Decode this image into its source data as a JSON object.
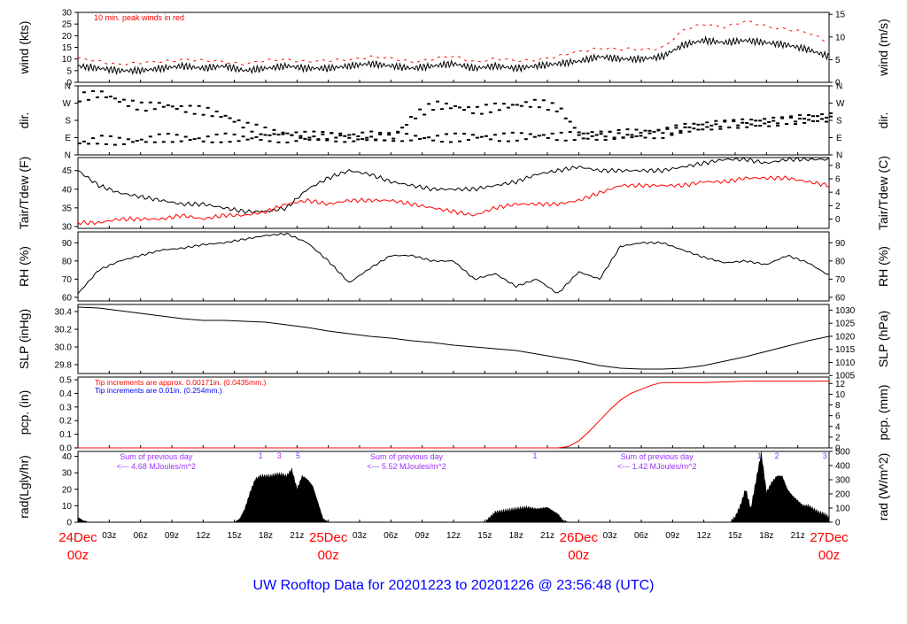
{
  "footer_title": "UW Rooftop Data for 20201223  to  20201226 @ 23:56:48  (UTC)",
  "colors": {
    "red": "#ff0000",
    "blue": "#0000ff",
    "purple": "#9b30ff",
    "black": "#000000"
  },
  "time_axis": {
    "hours_start": 0,
    "hours_end": 72,
    "day_labels": [
      {
        "hour": 0,
        "date": "24Dec",
        "time": "00z"
      },
      {
        "hour": 24,
        "date": "25Dec",
        "time": "00z"
      },
      {
        "hour": 48,
        "date": "26Dec",
        "time": "00z"
      },
      {
        "hour": 72,
        "date": "27Dec",
        "time": "00z"
      }
    ],
    "tick_labels": [
      {
        "hour": 3,
        "label": "03z"
      },
      {
        "hour": 6,
        "label": "06z"
      },
      {
        "hour": 9,
        "label": "09z"
      },
      {
        "hour": 12,
        "label": "12z"
      },
      {
        "hour": 15,
        "label": "15z"
      },
      {
        "hour": 18,
        "label": "18z"
      },
      {
        "hour": 21,
        "label": "21z"
      },
      {
        "hour": 27,
        "label": "03z"
      },
      {
        "hour": 30,
        "label": "06z"
      },
      {
        "hour": 33,
        "label": "09z"
      },
      {
        "hour": 36,
        "label": "12z"
      },
      {
        "hour": 39,
        "label": "15z"
      },
      {
        "hour": 42,
        "label": "18z"
      },
      {
        "hour": 45,
        "label": "21z"
      },
      {
        "hour": 51,
        "label": "03z"
      },
      {
        "hour": 54,
        "label": "06z"
      },
      {
        "hour": 57,
        "label": "09z"
      },
      {
        "hour": 60,
        "label": "12z"
      },
      {
        "hour": 63,
        "label": "15z"
      },
      {
        "hour": 66,
        "label": "18z"
      },
      {
        "hour": 69,
        "label": "21z"
      }
    ]
  },
  "chart_data": [
    {
      "id": "wind",
      "type": "line",
      "ylabel_left": "wind (kts)",
      "ylabel_right": "wind (m/s)",
      "ylim": [
        0,
        30
      ],
      "left_ticks": [
        0,
        5,
        10,
        15,
        20,
        25,
        30
      ],
      "right_ticks": [
        0,
        5,
        10,
        15
      ],
      "right_factor": 1.9438,
      "annotations": [
        {
          "text": "10 min. peak winds in red",
          "color": "#ff0000"
        }
      ],
      "x": [
        0,
        2,
        4,
        6,
        8,
        10,
        12,
        14,
        16,
        18,
        20,
        22,
        24,
        26,
        28,
        30,
        32,
        34,
        36,
        38,
        40,
        42,
        44,
        46,
        48,
        50,
        52,
        54,
        56,
        58,
        60,
        62,
        64,
        66,
        68,
        70,
        72
      ],
      "series": [
        {
          "color": "#000000",
          "values": [
            7,
            6,
            5,
            5,
            6,
            7,
            6,
            7,
            5,
            6,
            7,
            6,
            6,
            7,
            8,
            7,
            6,
            7,
            8,
            6,
            7,
            6,
            7,
            8,
            9,
            11,
            10,
            10,
            11,
            16,
            18,
            17,
            18,
            17,
            16,
            14,
            11
          ]
        },
        {
          "color": "#ff0000",
          "values": [
            10,
            9,
            8,
            8,
            9,
            10,
            9,
            9,
            8,
            9,
            10,
            9,
            9,
            10,
            11,
            10,
            9,
            10,
            11,
            9,
            10,
            9,
            10,
            11,
            13,
            15,
            14,
            14,
            15,
            22,
            25,
            24,
            26,
            24,
            23,
            21,
            17
          ]
        }
      ]
    },
    {
      "id": "dir",
      "type": "scatter",
      "ylabel_left": "dir.",
      "ylabel_right": "dir.",
      "ylim": [
        0,
        360
      ],
      "tick_labels": [
        "N",
        "E",
        "S",
        "W",
        "N"
      ],
      "tick_values": [
        0,
        90,
        180,
        270,
        360
      ],
      "x": [
        0,
        2,
        4,
        6,
        8,
        10,
        12,
        14,
        16,
        18,
        20,
        22,
        24,
        26,
        28,
        30,
        32,
        34,
        36,
        38,
        40,
        42,
        44,
        46,
        48,
        50,
        52,
        54,
        56,
        58,
        60,
        62,
        64,
        66,
        68,
        70,
        72
      ],
      "series": [
        {
          "color": "#000000",
          "values": [
            60,
            80,
            70,
            75,
            90,
            85,
            80,
            90,
            85,
            90,
            85,
            90,
            95,
            85,
            90,
            95,
            90,
            85,
            90,
            95,
            90,
            95,
            100,
            95,
            100,
            105,
            110,
            115,
            125,
            140,
            150,
            160,
            165,
            170,
            180,
            190,
            195
          ]
        },
        {
          "color": "#000000",
          "values": [
            300,
            320,
            280,
            250,
            260,
            240,
            230,
            200,
            150,
            120,
            110,
            100,
            100,
            95,
            100,
            90,
            200,
            260,
            250,
            230,
            250,
            260,
            270,
            240,
            100,
            100,
            100,
            105,
            110,
            140,
            150,
            160,
            165,
            170,
            180,
            190,
            195
          ]
        }
      ]
    },
    {
      "id": "temp",
      "type": "line",
      "ylabel_left": "Tair/Tdew (F)",
      "ylabel_right": "Tair/Tdew (C)",
      "ylim": [
        29.5,
        48.5
      ],
      "left_ticks": [
        30,
        35,
        40,
        45
      ],
      "right_ticks": [
        0,
        2,
        4,
        6,
        8
      ],
      "x": [
        0,
        2,
        4,
        6,
        8,
        10,
        12,
        14,
        16,
        18,
        20,
        22,
        24,
        26,
        28,
        30,
        32,
        34,
        36,
        38,
        40,
        42,
        44,
        46,
        48,
        50,
        52,
        54,
        56,
        58,
        60,
        62,
        64,
        66,
        68,
        70,
        72
      ],
      "series": [
        {
          "name": "Tair",
          "color": "#000000",
          "values": [
            45,
            41,
            39,
            38,
            37,
            36,
            36,
            35,
            34,
            34,
            35,
            40,
            43,
            45,
            44,
            42,
            41,
            40,
            40,
            40,
            41,
            42,
            44,
            45,
            46,
            45,
            45,
            45,
            45,
            46,
            47,
            48,
            48,
            47,
            48,
            48,
            48
          ]
        },
        {
          "name": "Tdew",
          "color": "#ff0000",
          "values": [
            31,
            31,
            32,
            32,
            32,
            33,
            32,
            33,
            33,
            34,
            36,
            37,
            36,
            37,
            37,
            37,
            36,
            35,
            34,
            33,
            35,
            36,
            36,
            36,
            37,
            39,
            41,
            41,
            41,
            41,
            42,
            42,
            43,
            43,
            43,
            42,
            41
          ]
        }
      ]
    },
    {
      "id": "rh",
      "type": "line",
      "ylabel_left": "RH (%)",
      "ylabel_right": "RH (%)",
      "ylim": [
        58,
        96
      ],
      "left_ticks": [
        60,
        70,
        80,
        90
      ],
      "right_ticks": [
        60,
        70,
        80,
        90
      ],
      "x": [
        0,
        2,
        4,
        6,
        8,
        10,
        12,
        14,
        16,
        18,
        20,
        22,
        24,
        26,
        28,
        30,
        32,
        34,
        36,
        38,
        40,
        42,
        44,
        46,
        48,
        50,
        52,
        54,
        56,
        58,
        60,
        62,
        64,
        66,
        68,
        70,
        72
      ],
      "series": [
        {
          "color": "#000000",
          "values": [
            62,
            75,
            80,
            83,
            86,
            87,
            89,
            90,
            92,
            94,
            95,
            90,
            80,
            68,
            76,
            83,
            83,
            80,
            80,
            70,
            73,
            66,
            70,
            62,
            74,
            70,
            88,
            90,
            90,
            86,
            82,
            79,
            80,
            78,
            83,
            79,
            72
          ]
        }
      ]
    },
    {
      "id": "slp",
      "type": "line",
      "ylabel_left": "SLP (inHg)",
      "ylabel_right": "SLP (hPa)",
      "ylim": [
        29.7,
        30.48
      ],
      "left_ticks": [
        29.8,
        30.0,
        30.2,
        30.4
      ],
      "right_ticks": [
        1005,
        1010,
        1015,
        1020,
        1025,
        1030
      ],
      "x": [
        0,
        2,
        4,
        6,
        8,
        10,
        12,
        14,
        16,
        18,
        20,
        22,
        24,
        26,
        28,
        30,
        32,
        34,
        36,
        38,
        40,
        42,
        44,
        46,
        48,
        50,
        52,
        54,
        56,
        58,
        60,
        62,
        64,
        66,
        68,
        70,
        72
      ],
      "series": [
        {
          "color": "#000000",
          "values": [
            30.45,
            30.44,
            30.41,
            30.38,
            30.35,
            30.32,
            30.3,
            30.3,
            30.29,
            30.28,
            30.25,
            30.22,
            30.18,
            30.15,
            30.12,
            30.1,
            30.07,
            30.05,
            30.02,
            30.0,
            29.98,
            29.96,
            29.92,
            29.88,
            29.84,
            29.79,
            29.76,
            29.75,
            29.75,
            29.76,
            29.79,
            29.84,
            29.89,
            29.95,
            30.01,
            30.07,
            30.12
          ]
        }
      ]
    },
    {
      "id": "pcp",
      "type": "line",
      "ylabel_left": "pcp. (in)",
      "ylabel_right": "pcp. (mm)",
      "ylim": [
        0,
        0.52
      ],
      "left_ticks": [
        0.0,
        0.1,
        0.2,
        0.3,
        0.4,
        0.5
      ],
      "right_ticks": [
        0,
        2,
        4,
        6,
        8,
        10,
        12
      ],
      "annotations": [
        {
          "text": "Tip increments are approx. 0.00171in. (0.0435mm.)",
          "color": "#ff0000"
        },
        {
          "text": "Tip increments are 0.01in. (0.254mm.)",
          "color": "#0000ff"
        }
      ],
      "x": [
        0,
        12,
        24,
        36,
        46,
        47,
        48,
        49,
        50,
        51,
        52,
        53,
        54,
        55,
        56,
        58,
        60,
        64,
        68,
        72
      ],
      "series": [
        {
          "color": "#ff0000",
          "values": [
            0,
            0,
            0,
            0,
            0,
            0.01,
            0.05,
            0.12,
            0.2,
            0.28,
            0.35,
            0.4,
            0.43,
            0.46,
            0.48,
            0.48,
            0.48,
            0.49,
            0.49,
            0.49
          ]
        }
      ]
    },
    {
      "id": "rad",
      "type": "area",
      "ylabel_left": "rad(Lgly/hr)",
      "ylabel_right": "rad (W/m^2)",
      "ylim": [
        0,
        43
      ],
      "left_ticks": [
        0,
        10,
        20,
        30,
        40
      ],
      "right_ticks": [
        0,
        100,
        200,
        300,
        400,
        500
      ],
      "day_sums": [
        {
          "text": "Sum of previous day",
          "value": "<--- 4.68 MJoules/m^2"
        },
        {
          "text": "Sum of previous day",
          "value": "<--- 5.52 MJoules/m^2"
        },
        {
          "text": "Sum of previous day",
          "value": "<--- 1.42 MJoules/m^2"
        }
      ],
      "markers": [
        {
          "hour": 17.5,
          "label": "1"
        },
        {
          "hour": 19.3,
          "label": "3"
        },
        {
          "hour": 21.1,
          "label": "5"
        },
        {
          "hour": 43.8,
          "label": "1"
        },
        {
          "hour": 65.3,
          "label": "1"
        },
        {
          "hour": 67.0,
          "label": "2"
        },
        {
          "hour": 71.6,
          "label": "3"
        }
      ],
      "x": [
        0,
        0.5,
        1,
        15,
        15.5,
        16,
        16.5,
        17,
        17.5,
        18,
        18.5,
        19,
        19.5,
        20,
        20.5,
        21,
        21.5,
        22,
        22.5,
        23,
        23.5,
        24,
        39,
        39.5,
        40,
        41,
        42,
        43,
        44,
        45,
        46,
        46.5,
        47,
        62.5,
        63,
        63.5,
        64,
        64.5,
        65,
        65.5,
        66,
        66.5,
        67,
        67.5,
        68,
        68.5,
        69,
        69.5,
        70,
        70.5,
        71,
        71.5,
        72
      ],
      "series": [
        {
          "color": "#000000",
          "values": [
            3,
            1,
            0,
            0,
            2,
            8,
            18,
            26,
            28,
            28,
            28,
            29,
            29,
            28,
            32,
            20,
            28,
            26,
            22,
            12,
            2,
            0,
            0,
            3,
            6,
            7,
            8,
            9,
            8,
            9,
            5,
            1,
            0,
            0,
            3,
            10,
            20,
            8,
            25,
            42,
            18,
            24,
            28,
            28,
            20,
            16,
            13,
            10,
            10,
            8,
            6,
            5,
            3
          ]
        }
      ]
    }
  ]
}
